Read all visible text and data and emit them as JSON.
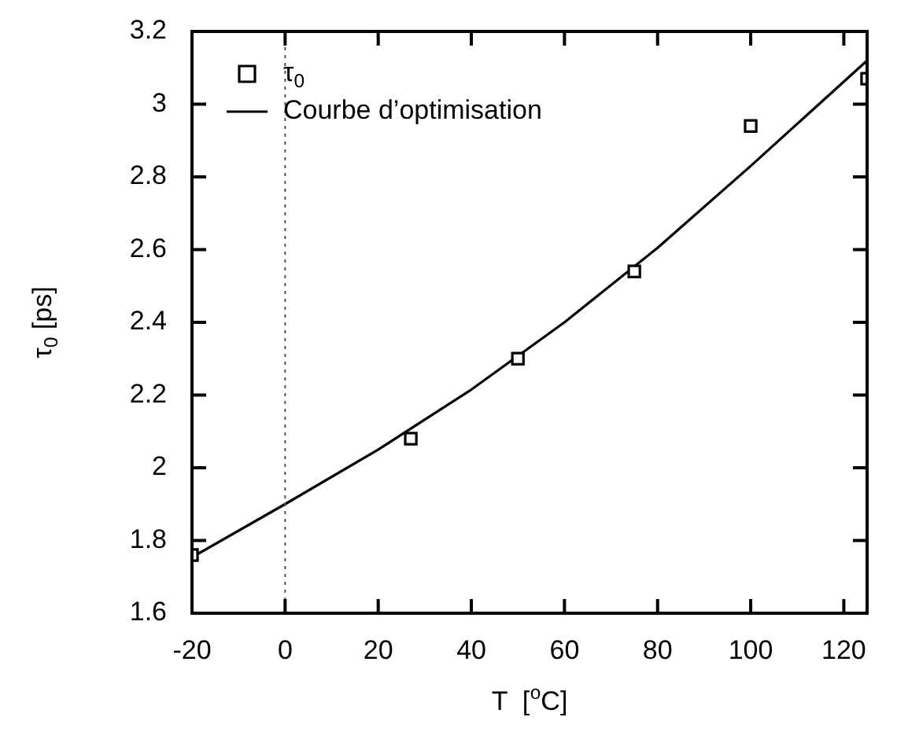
{
  "chart_data": {
    "type": "scatter",
    "xlabel": "T  [$^{o}$C]",
    "ylabel": "τ$_{0}$ [ps]",
    "xlim": [
      -20,
      125
    ],
    "xticks": [
      -20,
      0,
      20,
      40,
      60,
      80,
      100,
      120
    ],
    "ylim": [
      1.6,
      3.2
    ],
    "yticks": [
      1.6,
      1.8,
      2,
      2.2,
      2.4,
      2.6,
      2.8,
      3,
      3.2
    ],
    "grid": false,
    "legend": "top left",
    "series": [
      {
        "name": "τ$_{0}$",
        "marker": "square",
        "color": "#000000",
        "x": [
          -20,
          27,
          50,
          75,
          100,
          125
        ],
        "values": [
          1.76,
          2.08,
          2.3,
          2.54,
          2.94,
          3.07
        ]
      },
      {
        "name": "Courbe d’optimisation",
        "type": "line",
        "marker": "none",
        "line_style": "solid",
        "color": "#000000",
        "x": [
          -20,
          0,
          20,
          40,
          60,
          80,
          100,
          125
        ],
        "values": [
          1.754,
          1.9,
          2.05,
          2.215,
          2.4,
          2.605,
          2.83,
          3.12
        ]
      }
    ],
    "ref_lines": [
      {
        "axis": "x",
        "value": 0,
        "color": "#555555",
        "line_style": "dotted"
      }
    ]
  }
}
